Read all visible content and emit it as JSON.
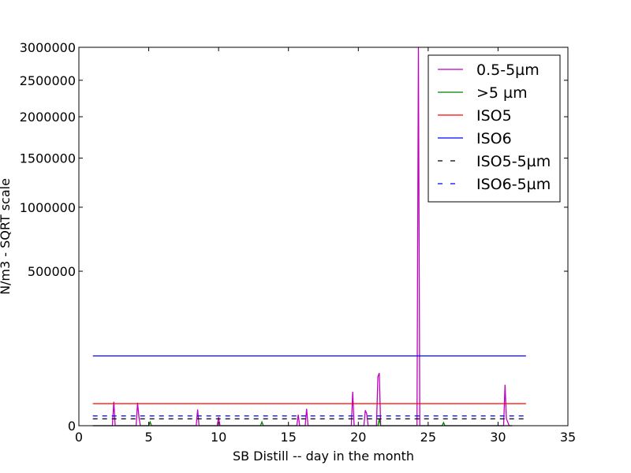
{
  "chart_data": {
    "type": "line",
    "xlabel": "SB Distill -- day in the month",
    "ylabel": "N/m3 - SQRT scale",
    "xlim": [
      0,
      35
    ],
    "ylim": [
      0,
      3000000
    ],
    "yscale": "sqrt",
    "grid": false,
    "legend_position": "top-right",
    "x_ticks": [
      0,
      5,
      10,
      15,
      20,
      25,
      30,
      35
    ],
    "x_tick_labels": [
      "0",
      "5",
      "10",
      "15",
      "20",
      "25",
      "30",
      "35"
    ],
    "y_ticks": [
      0,
      500000,
      1000000,
      1500000,
      2000000,
      2500000,
      3000000
    ],
    "y_tick_labels": [
      "0",
      "500000",
      "1000000",
      "1500000",
      "2000000",
      "2500000",
      "3000000"
    ],
    "series": [
      {
        "name": "0.5-5µm",
        "color": "#bf00bf",
        "style": "solid",
        "points": [
          [
            1.0,
            0
          ],
          [
            2.4,
            0
          ],
          [
            2.5,
            12000
          ],
          [
            2.6,
            0
          ],
          [
            4.1,
            0
          ],
          [
            4.2,
            11000
          ],
          [
            4.3,
            1500
          ],
          [
            4.4,
            0
          ],
          [
            8.4,
            0
          ],
          [
            8.5,
            5500
          ],
          [
            8.6,
            0
          ],
          [
            9.9,
            0
          ],
          [
            10.0,
            1500
          ],
          [
            10.1,
            0
          ],
          [
            15.6,
            0
          ],
          [
            15.7,
            2500
          ],
          [
            15.8,
            0
          ],
          [
            16.2,
            0
          ],
          [
            16.3,
            6000
          ],
          [
            16.4,
            0
          ],
          [
            19.5,
            0
          ],
          [
            19.6,
            24000
          ],
          [
            19.7,
            0
          ],
          [
            20.4,
            0
          ],
          [
            20.5,
            5000
          ],
          [
            20.6,
            3000
          ],
          [
            20.7,
            0
          ],
          [
            21.3,
            0
          ],
          [
            21.4,
            50000
          ],
          [
            21.5,
            58000
          ],
          [
            21.6,
            0
          ],
          [
            24.2,
            0
          ],
          [
            24.3,
            3000000
          ],
          [
            24.4,
            0
          ],
          [
            30.4,
            0
          ],
          [
            30.5,
            35000
          ],
          [
            30.6,
            1000
          ],
          [
            30.8,
            0
          ],
          [
            31.0,
            0
          ]
        ]
      },
      {
        "name": ">5 µm",
        "color": "#008000",
        "style": "solid",
        "points": [
          [
            1.0,
            0
          ],
          [
            5.0,
            0
          ],
          [
            5.1,
            300
          ],
          [
            5.2,
            0
          ],
          [
            13.0,
            0
          ],
          [
            13.1,
            300
          ],
          [
            13.2,
            0
          ],
          [
            21.4,
            0
          ],
          [
            21.5,
            900
          ],
          [
            21.6,
            0
          ],
          [
            26.0,
            0
          ],
          [
            26.1,
            200
          ],
          [
            26.2,
            0
          ],
          [
            31.0,
            0
          ]
        ]
      },
      {
        "name": "ISO5",
        "color": "#ff0000",
        "style": "solid",
        "points": [
          [
            1.0,
            10200
          ],
          [
            32.0,
            10200
          ]
        ]
      },
      {
        "name": "ISO6",
        "color": "#0000ff",
        "style": "solid",
        "points": [
          [
            1.0,
            102000
          ],
          [
            32.0,
            102000
          ]
        ]
      },
      {
        "name": "ISO5-5µm",
        "color": "#000000",
        "style": "dashed",
        "points": [
          [
            1.0,
            1000
          ],
          [
            32.0,
            1000
          ]
        ]
      },
      {
        "name": "ISO6-5µm",
        "color": "#0000ff",
        "style": "dashed",
        "points": [
          [
            1.0,
            2000
          ],
          [
            32.0,
            2000
          ]
        ]
      }
    ]
  }
}
